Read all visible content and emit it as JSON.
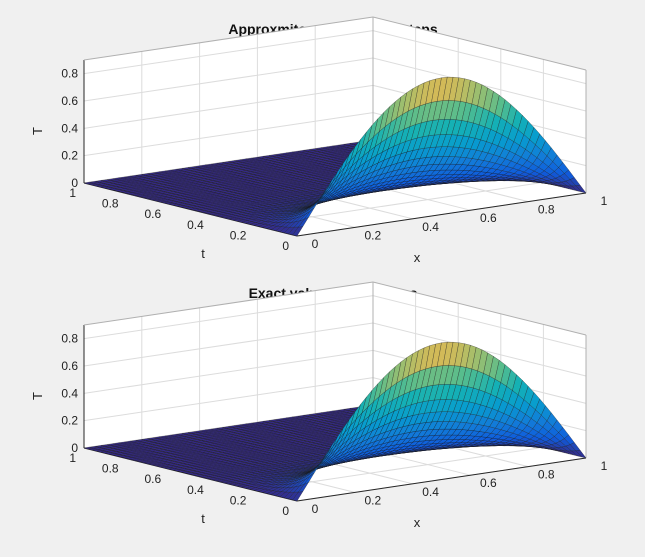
{
  "figure": {
    "background": "#f0f0f0"
  },
  "chart_data": [
    {
      "type": "surface",
      "title": "Approxmite value with 50 steps",
      "xlabel": "x",
      "ylabel": "t",
      "zlabel": "T",
      "xlim": [
        0,
        1
      ],
      "ylim": [
        0,
        1
      ],
      "zlim": [
        0,
        0.9
      ],
      "xticks": [
        "0",
        "0.2",
        "0.4",
        "0.6",
        "0.8",
        "1"
      ],
      "yticks": [
        "0",
        "0.2",
        "0.4",
        "0.6",
        "0.8",
        "1"
      ],
      "zticks": [
        "0",
        "0.2",
        "0.4",
        "0.6",
        "0.8"
      ],
      "grid": true,
      "colormap": "parula",
      "surface": {
        "function": "exp(-pi^2 * t) * sin(pi * x)",
        "x_steps": 50,
        "t_steps": 50,
        "peak_value": 1.0,
        "min_value": 0.0
      }
    },
    {
      "type": "surface",
      "title": "Exact value with 50 steps",
      "xlabel": "x",
      "ylabel": "t",
      "zlabel": "T",
      "xlim": [
        0,
        1
      ],
      "ylim": [
        0,
        1
      ],
      "zlim": [
        0,
        0.9
      ],
      "xticks": [
        "0",
        "0.2",
        "0.4",
        "0.6",
        "0.8",
        "1"
      ],
      "yticks": [
        "0",
        "0.2",
        "0.4",
        "0.6",
        "0.8",
        "1"
      ],
      "zticks": [
        "0",
        "0.2",
        "0.4",
        "0.6",
        "0.8"
      ],
      "grid": true,
      "colormap": "parula",
      "surface": {
        "function": "exp(-pi^2 * t) * sin(pi * x)",
        "x_steps": 50,
        "t_steps": 50,
        "peak_value": 1.0,
        "min_value": 0.0
      }
    }
  ]
}
